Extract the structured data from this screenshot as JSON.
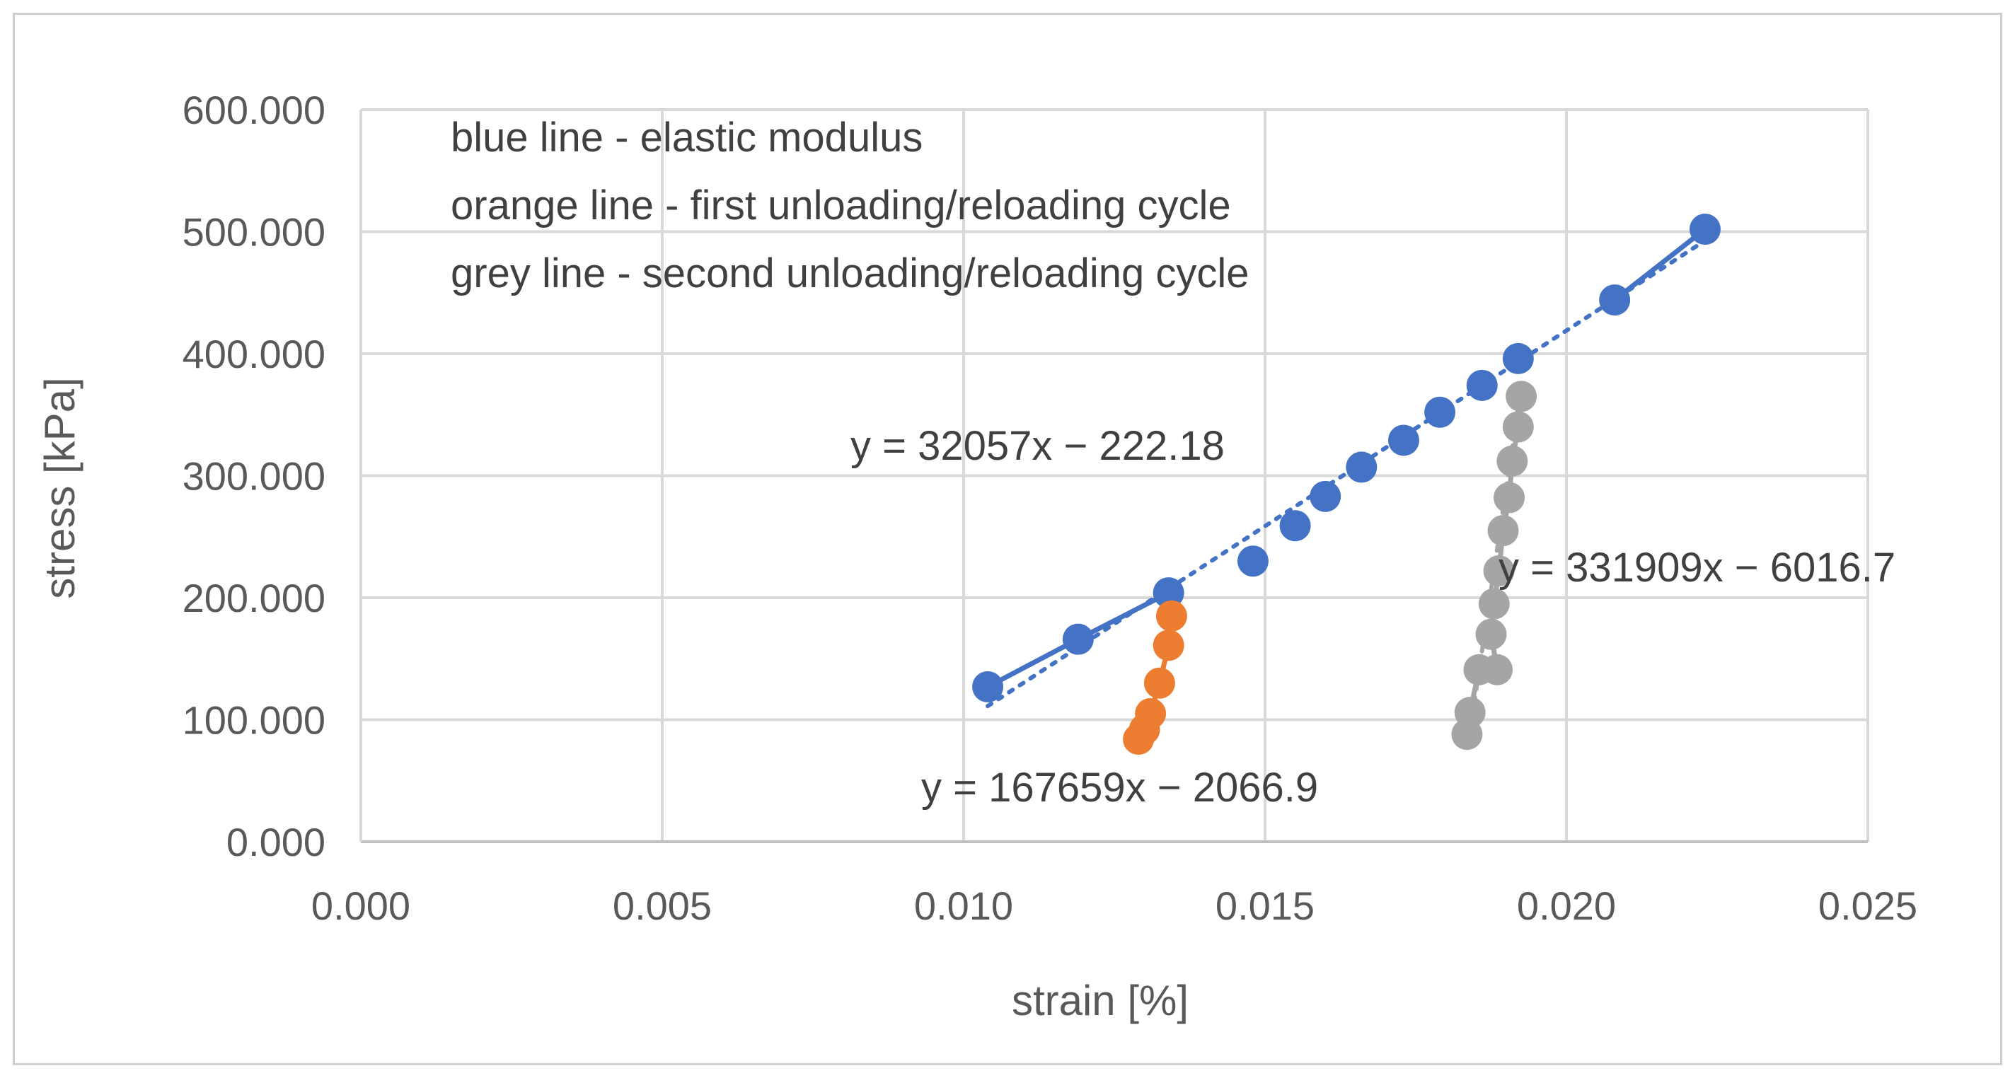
{
  "chart_data": {
    "type": "scatter",
    "title": "",
    "xlabel": "strain [%]",
    "ylabel": "stress [kPa]",
    "xlim": [
      0,
      0.025
    ],
    "ylim": [
      0,
      600
    ],
    "grid": true,
    "x_ticks": [
      "0.000",
      "0.005",
      "0.010",
      "0.015",
      "0.020",
      "0.025"
    ],
    "y_ticks": [
      "0.000",
      "100.000",
      "200.000",
      "300.000",
      "400.000",
      "500.000",
      "600.000"
    ],
    "notes": [
      "blue line - elastic modulus",
      "orange line - first unloading/reloading cycle",
      "grey line - second unloading/reloading cycle"
    ],
    "series": [
      {
        "name": "blue - elastic modulus",
        "color": "#4472c4",
        "trendline": "y = 32057x − 222.18",
        "segments": [
          [
            0,
            2
          ],
          [
            11,
            12
          ]
        ],
        "points": [
          [
            0.0104,
            127
          ],
          [
            0.0119,
            166
          ],
          [
            0.0134,
            204
          ],
          [
            0.0148,
            230
          ],
          [
            0.0155,
            259
          ],
          [
            0.016,
            283
          ],
          [
            0.0166,
            307
          ],
          [
            0.0173,
            329
          ],
          [
            0.0179,
            352
          ],
          [
            0.0186,
            374
          ],
          [
            0.0192,
            396
          ],
          [
            0.0208,
            444
          ],
          [
            0.0223,
            502
          ]
        ],
        "trend_fit": {
          "slope": 32057,
          "intercept": -222.18,
          "x_range": [
            0.0104,
            0.0223
          ]
        }
      },
      {
        "name": "orange - first unloading/reloading cycle",
        "color": "#ed7d31",
        "trendline": "y = 167659x − 2066.9",
        "segments": [
          [
            0,
            5
          ]
        ],
        "points": [
          [
            0.01345,
            185
          ],
          [
            0.0134,
            161
          ],
          [
            0.01325,
            130
          ],
          [
            0.0131,
            105
          ],
          [
            0.013,
            92
          ],
          [
            0.0129,
            84
          ]
        ]
      },
      {
        "name": "grey - second unloading/reloading cycle",
        "color": "#a5a5a5",
        "trendline": "y = 331909x − 6016.7",
        "segments": [
          [
            0,
            11
          ]
        ],
        "points": [
          [
            0.01925,
            365
          ],
          [
            0.0192,
            340
          ],
          [
            0.0191,
            312
          ],
          [
            0.01905,
            282
          ],
          [
            0.01895,
            255
          ],
          [
            0.01888,
            222
          ],
          [
            0.0188,
            195
          ],
          [
            0.01875,
            170
          ],
          [
            0.01885,
            141
          ],
          [
            0.01855,
            141
          ],
          [
            0.0184,
            106
          ],
          [
            0.01835,
            88
          ]
        ],
        "trend_fit": {
          "slope": 331909,
          "intercept": -6016.7,
          "x_range": [
            0.01838,
            0.01925
          ]
        }
      }
    ]
  }
}
